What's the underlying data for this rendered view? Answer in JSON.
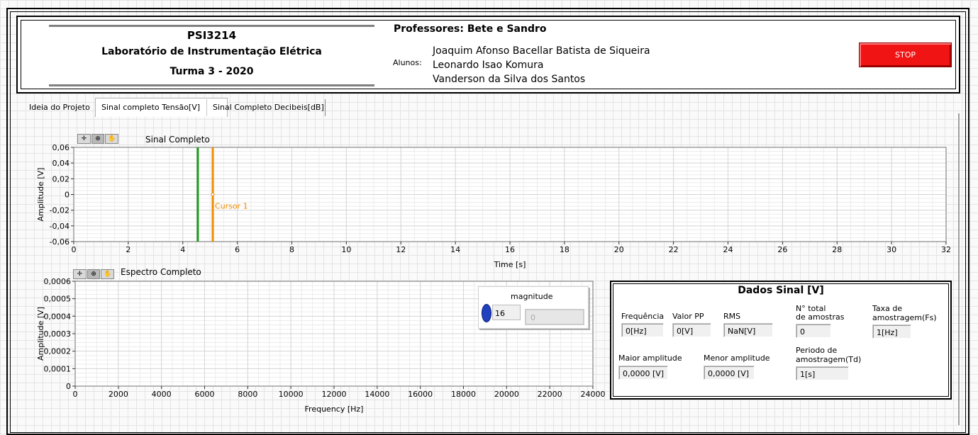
{
  "header": {
    "course_code": "PSI3214",
    "course_name": "Laboratório de Instrumentação Elétrica",
    "class": "Turma 3 - 2020",
    "professors": "Professores: Bete e Sandro",
    "students_label": "Alunos:",
    "students": [
      "Joaquim Afonso Bacellar Batista de Siqueira",
      "Leonardo Isao Komura",
      "Vanderson da Silva dos Santos"
    ],
    "stop_label": "STOP"
  },
  "tabs": [
    {
      "label": "Ideia do Projeto",
      "active": false
    },
    {
      "label": "Sinal completo Tensão[V]",
      "active": true
    },
    {
      "label": "Sinal Completo Decibeis[dB]",
      "active": false
    }
  ],
  "graph1": {
    "title": "Sinal  Completo",
    "cursor_label": "Cursor 1"
  },
  "graph2": {
    "title": "Espectro Completo"
  },
  "magnitude": {
    "label": "magnitude",
    "value": "16",
    "output": "0"
  },
  "dados": {
    "title": "Dados Sinal [V]",
    "frequencia": {
      "label": "Frequência",
      "value": "0[Hz]"
    },
    "valor_pp": {
      "label": "Valor PP",
      "value": "0[V]"
    },
    "rms": {
      "label": "RMS",
      "value": "NaN[V]"
    },
    "n_amostras": {
      "label1": "N° total",
      "label2": "de amostras",
      "value": "0"
    },
    "taxa": {
      "label1": "Taxa de",
      "label2": "amostragem(Fs)",
      "value": "1[Hz]"
    },
    "maior": {
      "label": "Maior amplitude",
      "value": "0,0000 [V]"
    },
    "menor": {
      "label": "Menor amplitude",
      "value": "0,0000 [V]"
    },
    "periodo": {
      "label1": "Periodo de",
      "label2": "amostragem(Td)",
      "value": "1[s]"
    }
  },
  "chart_data": [
    {
      "type": "line",
      "title": "Sinal  Completo",
      "xlabel": "Time [s]",
      "ylabel": "Amplitude [V]",
      "xlim": [
        0,
        32
      ],
      "ylim": [
        -0.06,
        0.06
      ],
      "x_ticks": [
        "0",
        "2",
        "4",
        "6",
        "8",
        "10",
        "12",
        "14",
        "16",
        "18",
        "20",
        "22",
        "24",
        "26",
        "28",
        "30",
        "32"
      ],
      "y_ticks": [
        "0,06",
        "0,04",
        "0,02",
        "0",
        "-0,02",
        "-0,04",
        "-0,06"
      ],
      "series": [],
      "vertical_markers": [
        {
          "x": 4.55,
          "color": "#1a9a1a"
        },
        {
          "x": 5.1,
          "color": "#f08c00",
          "label": "Cursor 1"
        }
      ],
      "grid": true
    },
    {
      "type": "line",
      "title": "Espectro Completo",
      "xlabel": "Frequency [Hz]",
      "ylabel": "Amplitude [V]",
      "xlim": [
        0,
        24000
      ],
      "ylim": [
        0,
        0.0006
      ],
      "x_ticks": [
        "0",
        "2000",
        "4000",
        "6000",
        "8000",
        "10000",
        "12000",
        "14000",
        "16000",
        "18000",
        "20000",
        "22000",
        "24000"
      ],
      "y_ticks": [
        "0,0006",
        "0,0005",
        "0,0004",
        "0,0003",
        "0,0002",
        "0,0001",
        "0"
      ],
      "series": [],
      "grid": true
    }
  ]
}
